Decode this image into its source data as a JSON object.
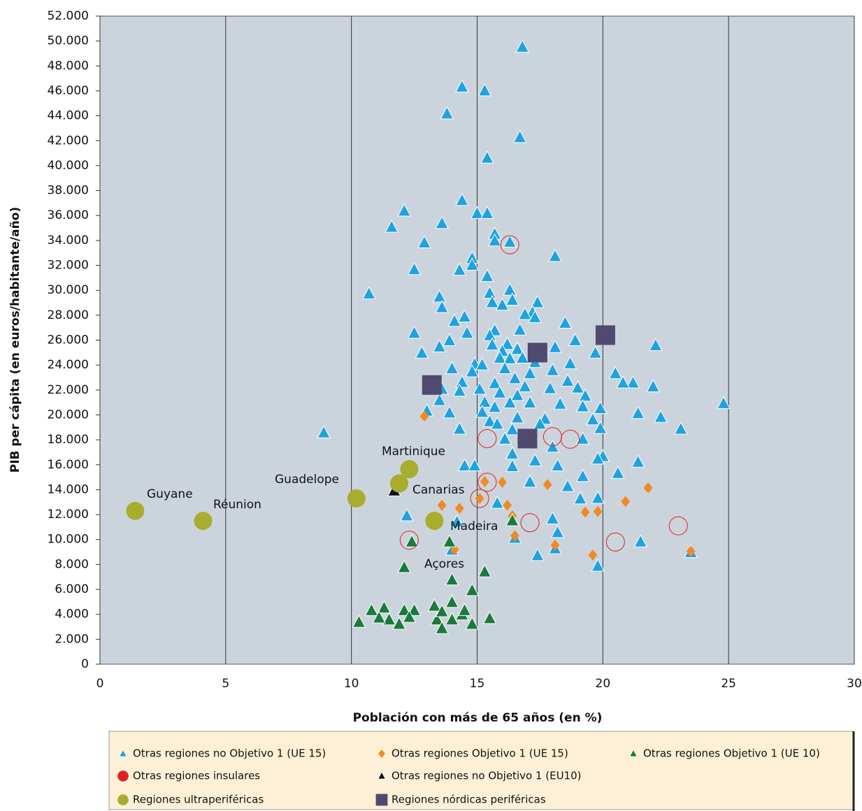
{
  "chart_data": {
    "type": "scatter",
    "x_label": "Población con más de 65 años (en %)",
    "y_label": "PIB per cápita (en euros/habitante/año)",
    "xlim": [
      0,
      30
    ],
    "xticks": [
      0,
      5,
      10,
      15,
      20,
      25,
      30
    ],
    "ylim": [
      0,
      52000
    ],
    "yticks": [
      0,
      {
        "value": 2000,
        "label": "2.000"
      },
      {
        "value": 4000,
        "label": "4.000"
      },
      {
        "value": 6000,
        "label": "6.000"
      },
      {
        "value": 8000,
        "label": "8.000"
      },
      {
        "value": 10000,
        "label": "10.000"
      },
      {
        "value": 12000,
        "label": "12.000"
      },
      {
        "value": 14000,
        "label": "14.000"
      },
      {
        "value": 16000,
        "label": "16.000"
      },
      {
        "value": 18000,
        "label": "18.000"
      },
      {
        "value": 20000,
        "label": "20.000"
      },
      {
        "value": 22000,
        "label": "22.000"
      },
      {
        "value": 24000,
        "label": "24.000"
      },
      {
        "value": 26000,
        "label": "26.000"
      },
      {
        "value": 28000,
        "label": "28.000"
      },
      {
        "value": 30000,
        "label": "30.000"
      },
      {
        "value": 32000,
        "label": "32.000"
      },
      {
        "value": 34000,
        "label": "34.000"
      },
      {
        "value": 36000,
        "label": "36.000"
      },
      {
        "value": 38000,
        "label": "38.000"
      },
      {
        "value": 40000,
        "label": "40.000"
      },
      {
        "value": 42000,
        "label": "42.000"
      },
      {
        "value": 44000,
        "label": "44.000"
      },
      {
        "value": 46000,
        "label": "46.000"
      },
      {
        "value": 48000,
        "label": "48.000"
      },
      {
        "value": 50000,
        "label": "50.000"
      },
      {
        "value": 52000,
        "label": "52.000"
      }
    ],
    "grid": "x",
    "annotations": [
      "Guyane",
      "Réunion",
      "Guadelope",
      "Martinique",
      "Canarias",
      "Madeira",
      "Açores"
    ],
    "series": [
      {
        "name": "Otras regiones no Objetivo 1 (UE 15)",
        "color": "#1ea3e0",
        "marker": "triangle",
        "x": [
          16.8,
          14.4,
          15.3,
          13.8,
          16.7,
          15.4,
          14.4,
          12.1,
          15.0,
          15.4,
          11.6,
          13.6,
          15.7,
          15.7,
          12.9,
          16.3,
          18.1,
          14.8,
          14.8,
          14.3,
          12.5,
          15.4,
          10.7,
          16.3,
          15.5,
          13.5,
          13.6,
          17.4,
          15.6,
          16.4,
          16.0,
          17.2,
          16.9,
          17.3,
          14.5,
          14.1,
          18.5,
          12.5,
          14.6,
          15.7,
          15.5,
          16.7,
          13.9,
          18.9,
          22.1,
          13.5,
          12.8,
          18.1,
          15.6,
          16.2,
          16.0,
          16.6,
          17.6,
          19.7,
          15.9,
          16.3,
          16.8,
          17.3,
          18.7,
          14.9,
          15.2,
          14.8,
          14.0,
          20.5,
          16.1,
          17.1,
          18.0,
          21.2,
          20.8,
          22.0,
          16.5,
          18.6,
          14.4,
          15.7,
          16.9,
          17.9,
          19.0,
          13.6,
          14.3,
          15.1,
          15.9,
          16.6,
          19.3,
          24.8,
          13.5,
          15.3,
          16.3,
          17.1,
          18.3,
          19.2,
          19.9,
          15.7,
          13.0,
          13.9,
          15.2,
          21.4,
          22.3,
          16.6,
          17.7,
          19.6,
          15.5,
          15.8,
          17.5,
          19.9,
          23.1,
          8.9,
          14.3,
          16.4,
          19.2,
          16.1,
          16.4,
          18.0,
          20.0,
          19.8,
          21.4,
          14.5,
          14.9,
          17.3,
          18.2,
          16.4,
          20.6,
          19.2,
          17.1,
          18.6,
          12.2,
          18.0,
          18.2,
          14.2,
          15.8,
          19.8,
          19.1,
          17.4,
          19.8,
          21.5,
          18.1,
          14.0,
          16.5,
          23.5
        ],
        "values": [
          49500,
          46300,
          46000,
          44150,
          42250,
          40600,
          37200,
          36350,
          36150,
          36150,
          35050,
          35350,
          34500,
          33950,
          33800,
          33850,
          32700,
          32550,
          32000,
          31600,
          31650,
          31100,
          29700,
          30000,
          29750,
          29450,
          28600,
          29000,
          29000,
          29200,
          28800,
          28200,
          28050,
          27800,
          27850,
          27500,
          27350,
          26550,
          26550,
          26750,
          26350,
          26800,
          25950,
          25950,
          25550,
          25450,
          24950,
          25400,
          25600,
          25650,
          25100,
          25250,
          25100,
          24950,
          24550,
          24500,
          24550,
          24200,
          24100,
          24050,
          24000,
          23450,
          23700,
          23300,
          23700,
          23300,
          23550,
          22550,
          22550,
          22250,
          22900,
          22700,
          22600,
          22500,
          22250,
          22100,
          22150,
          22050,
          21900,
          22050,
          21750,
          21550,
          21500,
          20900,
          21150,
          21000,
          20950,
          20950,
          20850,
          20650,
          20500,
          20600,
          20300,
          20150,
          20200,
          20100,
          19800,
          19750,
          19650,
          19600,
          19450,
          19250,
          19250,
          18900,
          18850,
          18550,
          18850,
          18800,
          18050,
          18050,
          16850,
          17400,
          16650,
          16450,
          16200,
          15900,
          15900,
          16300,
          15900,
          15850,
          15300,
          15050,
          14600,
          14250,
          11900,
          11650,
          10550,
          11400,
          12900,
          13300,
          13250,
          8700,
          7850,
          9800,
          9250,
          9150,
          10100,
          8950
        ]
      },
      {
        "name": "Otras regiones Objetivo 1 (UE 15)",
        "color": "#f08a24",
        "marker": "diamond",
        "x": [
          12.9,
          13.6,
          14.3,
          14.1,
          15.3,
          15.1,
          16.0,
          16.2,
          16.4,
          16.5,
          17.8,
          18.1,
          19.3,
          19.8,
          20.9,
          21.8,
          19.6,
          23.5
        ],
        "values": [
          19900,
          12750,
          12500,
          9200,
          14650,
          13300,
          14600,
          12750,
          11900,
          10300,
          14400,
          9550,
          12200,
          12250,
          13050,
          14150,
          8750,
          9050
        ]
      },
      {
        "name": "Otras regiones Objetivo 1 (UE 10)",
        "color": "#1a7a3c",
        "marker": "triangle",
        "x": [
          12.1,
          14.0,
          15.3,
          14.8,
          13.9,
          12.4,
          16.4,
          15.5,
          10.3,
          10.8,
          11.3,
          11.5,
          11.9,
          12.1,
          12.5,
          13.3,
          13.4,
          13.6,
          14.0,
          14.0,
          14.4,
          14.8,
          13.6,
          11.1,
          12.3,
          14.5
        ],
        "values": [
          7750,
          6750,
          7400,
          5900,
          9800,
          9800,
          11500,
          3650,
          3350,
          4300,
          4500,
          3550,
          3200,
          4300,
          4300,
          4650,
          3550,
          2850,
          4950,
          3550,
          3950,
          3200,
          4200,
          3700,
          3750,
          4300
        ]
      },
      {
        "name": "Otras regiones insulares",
        "color": "#e02020",
        "marker": "ring",
        "x": [
          16.3,
          15.4,
          15.4,
          15.1,
          17.1,
          18.0,
          18.7,
          20.5,
          23.0,
          12.3
        ],
        "values": [
          33650,
          18100,
          14600,
          13300,
          11350,
          18250,
          18050,
          9800,
          11100,
          9950
        ]
      },
      {
        "name": "Otras regiones no Objetivo 1 (EU10)",
        "color": "#111111",
        "marker": "triangle",
        "x": [
          11.7
        ],
        "values": [
          13900
        ]
      },
      {
        "name": "Regiones ultraperiféricas",
        "color": "#a8ad2e",
        "marker": "circle",
        "x": [
          1.4,
          4.1,
          10.2,
          12.3,
          11.9,
          13.3
        ],
        "values": [
          12300,
          11500,
          13300,
          15650,
          14500,
          11500
        ]
      },
      {
        "name": "Regiones nórdicas periféricas",
        "color": "#4f4a6e",
        "marker": "square",
        "x": [
          13.2,
          17.4,
          20.1,
          17.0
        ],
        "values": [
          22400,
          25000,
          26400,
          18100
        ]
      }
    ]
  }
}
